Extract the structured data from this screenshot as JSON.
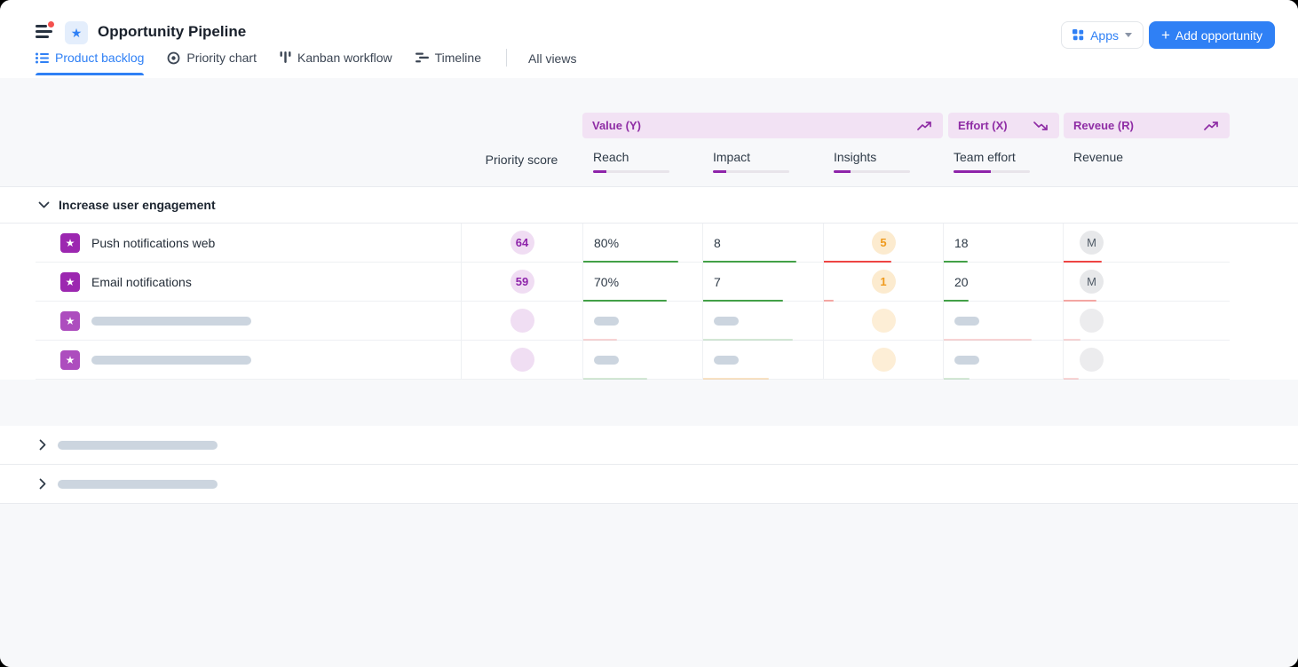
{
  "header": {
    "title": "Opportunity Pipeline",
    "apps_button": "Apps",
    "add_button": "Add opportunity",
    "tabs": [
      {
        "label": "Product backlog",
        "active": true
      },
      {
        "label": "Priority chart",
        "active": false
      },
      {
        "label": "Kanban workflow",
        "active": false
      },
      {
        "label": "Timeline",
        "active": false
      }
    ],
    "all_views": "All views"
  },
  "colors": {
    "accent_blue": "#2f80f5",
    "purple": "#8e24aa",
    "green": "#43a047",
    "red": "#ee4443",
    "light_red": "#f3a6a3",
    "orange": "#f3a63c",
    "pill_bg": "#f2e2f4"
  },
  "table": {
    "score_header": "Priority score",
    "column_groups": [
      {
        "label": "Value (Y)",
        "trend": "up"
      },
      {
        "label": "Effort (X)",
        "trend": "down"
      },
      {
        "label": "Reveue (R)",
        "trend": "up"
      }
    ],
    "columns": [
      {
        "label": "Reach",
        "weight": {
          "pct": 17,
          "color": "#8e24aa"
        }
      },
      {
        "label": "Impact",
        "weight": {
          "pct": 17,
          "color": "#8e24aa"
        }
      },
      {
        "label": "Insights",
        "weight": {
          "pct": 22,
          "color": "#8e24aa"
        }
      },
      {
        "label": "Team effort",
        "weight": {
          "pct": 49,
          "color": "#8e24aa"
        }
      },
      {
        "label": "Revenue",
        "weight": {
          "pct": 0,
          "color": "#8e24aa"
        }
      }
    ],
    "group1": {
      "name": "Increase user engagement",
      "expanded": true
    },
    "rows": [
      {
        "name": "Push notifications web",
        "score": "64",
        "reach": "80%",
        "impact": "8",
        "insights": "5",
        "team_effort": "18",
        "revenue": "M",
        "bars": {
          "reach": {
            "pct": 80,
            "color": "#43a047"
          },
          "impact": {
            "pct": 78,
            "color": "#43a047"
          },
          "insights": {
            "pct": 57,
            "color": "#ee4443"
          },
          "team_effort": {
            "pct": 20,
            "color": "#43a047"
          },
          "revenue": {
            "pct": 23,
            "color": "#ee4443"
          }
        }
      },
      {
        "name": "Email notifications",
        "score": "59",
        "reach": "70%",
        "impact": "7",
        "insights": "1",
        "team_effort": "20",
        "revenue": "M",
        "bars": {
          "reach": {
            "pct": 70,
            "color": "#43a047"
          },
          "impact": {
            "pct": 67,
            "color": "#43a047"
          },
          "insights": {
            "pct": 8,
            "color": "#f3a6a3"
          },
          "team_effort": {
            "pct": 21,
            "color": "#43a047"
          },
          "revenue": {
            "pct": 20,
            "color": "#f3a6a3"
          }
        }
      },
      {
        "skeleton": true,
        "bars": {
          "reach": {
            "pct": 28,
            "color": "#ee444338"
          },
          "impact": {
            "pct": 75,
            "color": "#43a04738"
          },
          "team_effort": {
            "pct": 74,
            "color": "#ee444338"
          },
          "revenue": {
            "pct": 10,
            "color": "#ee444338"
          }
        }
      },
      {
        "skeleton": true,
        "bars": {
          "reach": {
            "pct": 54,
            "color": "#43a04738"
          },
          "impact": {
            "pct": 55,
            "color": "#f3a63c4d"
          },
          "team_effort": {
            "pct": 22,
            "color": "#43a04738"
          },
          "revenue": {
            "pct": 9,
            "color": "#ee444338"
          }
        }
      }
    ],
    "collapsed_groups": [
      {
        "skeleton": true
      },
      {
        "skeleton": true
      }
    ]
  }
}
